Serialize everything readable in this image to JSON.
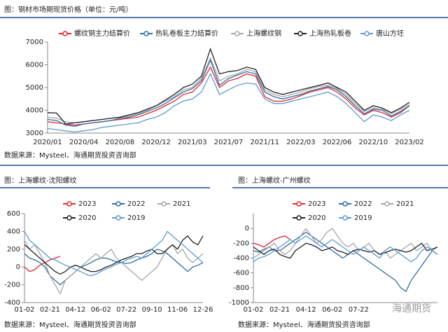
{
  "chart_data": [
    {
      "type": "line",
      "title": "图：钢材市场期现货价格（单位：元/吨）",
      "source": "数据来源：Mysteel、海通期货投资咨询部",
      "categories": [
        "2020/01",
        null,
        null,
        null,
        "2020/04",
        null,
        null,
        null,
        "2020/08",
        null,
        null,
        null,
        "2020/12",
        null,
        null,
        null,
        "2021/03",
        null,
        null,
        null,
        "2021/07",
        null,
        null,
        null,
        "2021/11",
        null,
        null,
        null,
        "2022/03",
        null,
        null,
        null,
        "2022/06",
        null,
        null,
        null,
        "2022/10",
        null,
        null,
        null,
        "2023/02"
      ],
      "ylim": [
        3000,
        7000
      ],
      "yticks": [
        3000,
        4000,
        5000,
        6000,
        7000
      ],
      "series": [
        {
          "name": "螺纹钢主力结算价",
          "color": "#e3262d",
          "values": [
            3500,
            3450,
            3400,
            3350,
            3400,
            3450,
            3500,
            3550,
            3600,
            3650,
            3700,
            3850,
            4000,
            4200,
            4400,
            4700,
            4800,
            5200,
            5900,
            5000,
            5300,
            5400,
            5600,
            5500,
            4600,
            4400,
            4400,
            4500,
            4650,
            4800,
            4900,
            5000,
            4800,
            4500,
            4100,
            3800,
            4000,
            3900,
            3700,
            3900,
            4200
          ]
        },
        {
          "name": "热轧卷板主力结算价",
          "color": "#2e6da4",
          "values": [
            3600,
            3550,
            3350,
            3300,
            3400,
            3450,
            3500,
            3550,
            3650,
            3700,
            3800,
            3950,
            4100,
            4300,
            4550,
            4800,
            4950,
            5300,
            6200,
            5100,
            5400,
            5550,
            5700,
            5600,
            4800,
            4600,
            4500,
            4600,
            4700,
            4850,
            4950,
            5050,
            4900,
            4600,
            4200,
            3850,
            4050,
            4000,
            3750,
            3950,
            4200
          ]
        },
        {
          "name": "上海螺纹钢",
          "color": "#a6a6a6",
          "values": [
            3700,
            3650,
            3500,
            3450,
            3500,
            3550,
            3600,
            3650,
            3700,
            3750,
            3850,
            4000,
            4200,
            4400,
            4600,
            4900,
            5000,
            5400,
            6300,
            5300,
            5500,
            5600,
            5800,
            5700,
            4900,
            4700,
            4600,
            4700,
            4800,
            4950,
            5050,
            5100,
            4950,
            4700,
            4300,
            3950,
            4100,
            4050,
            3850,
            4050,
            4250
          ]
        },
        {
          "name": "上海热轧板卷",
          "color": "#222222",
          "values": [
            3900,
            3880,
            3400,
            3450,
            3500,
            3550,
            3600,
            3650,
            3700,
            3800,
            3900,
            4050,
            4200,
            4450,
            4700,
            5000,
            5150,
            5500,
            6700,
            5600,
            5700,
            5750,
            5900,
            5800,
            5000,
            4800,
            4700,
            4800,
            4900,
            5000,
            5100,
            5200,
            5000,
            4800,
            4400,
            4000,
            4200,
            4100,
            3900,
            4100,
            4350
          ]
        },
        {
          "name": "唐山方坯",
          "color": "#5b9bd5",
          "values": [
            3200,
            3150,
            3100,
            3050,
            3100,
            3150,
            3250,
            3300,
            3350,
            3400,
            3450,
            3600,
            3700,
            3900,
            4200,
            4400,
            4500,
            4800,
            5600,
            4700,
            4900,
            5100,
            5200,
            5150,
            4500,
            4300,
            4300,
            4400,
            4500,
            4600,
            4700,
            4800,
            4600,
            4300,
            3900,
            3500,
            3800,
            3700,
            3550,
            3800,
            4000
          ]
        }
      ]
    },
    {
      "type": "line",
      "title": "图：上海螺纹-沈阳螺纹",
      "source": "数据来源：Mysteel、海通期货投资咨询部",
      "categories": [
        "01-02",
        null,
        null,
        null,
        null,
        "02-21",
        null,
        null,
        null,
        null,
        "04-12",
        null,
        null,
        null,
        null,
        "06-02",
        null,
        null,
        null,
        null,
        "07-22",
        null,
        null,
        null,
        null,
        "09-10",
        null,
        null,
        null,
        null,
        "11-06",
        null,
        null,
        null,
        null,
        "12-26"
      ],
      "ylim": [
        -400,
        600
      ],
      "yticks": [
        -400,
        -200,
        0,
        200,
        400,
        600
      ],
      "series": [
        {
          "name": "2023",
          "color": "#e3262d",
          "values": [
            0,
            -50,
            -30,
            20,
            50,
            80,
            100,
            120,
            null,
            null,
            null,
            null,
            null,
            null,
            null,
            null,
            null,
            null,
            null,
            null,
            null,
            null,
            null,
            null,
            null,
            null,
            null,
            null,
            null,
            null,
            null,
            null,
            null,
            null,
            null,
            null
          ]
        },
        {
          "name": "2022",
          "color": "#2e6da4",
          "values": [
            150,
            100,
            80,
            50,
            0,
            -100,
            -150,
            -200,
            -150,
            -100,
            -50,
            0,
            20,
            50,
            80,
            100,
            100,
            80,
            60,
            50,
            40,
            50,
            80,
            100,
            120,
            150,
            200,
            180,
            150,
            100,
            50,
            0,
            -50,
            0,
            20,
            50
          ]
        },
        {
          "name": "2021",
          "color": "#a6a6a6",
          "values": [
            300,
            200,
            250,
            150,
            50,
            -100,
            -200,
            -300,
            -150,
            -100,
            -50,
            0,
            50,
            100,
            150,
            100,
            150,
            200,
            100,
            50,
            0,
            -50,
            -100,
            -150,
            -100,
            -50,
            0,
            100,
            200,
            250,
            150,
            200,
            100,
            50,
            100,
            150
          ]
        },
        {
          "name": "2020",
          "color": "#222222",
          "values": [
            250,
            200,
            150,
            100,
            50,
            0,
            -50,
            -80,
            -50,
            0,
            20,
            0,
            -30,
            -50,
            -50,
            -30,
            0,
            20,
            50,
            80,
            100,
            120,
            150,
            150,
            180,
            200,
            150,
            150,
            200,
            250,
            200,
            300,
            350,
            280,
            250,
            350
          ]
        },
        {
          "name": "2019",
          "color": "#5b9bd5",
          "values": [
            400,
            300,
            250,
            200,
            150,
            100,
            80,
            50,
            20,
            0,
            -30,
            -50,
            -80,
            -100,
            -80,
            -50,
            -20,
            0,
            30,
            50,
            80,
            100,
            120,
            100,
            150,
            200,
            250,
            300,
            400,
            350,
            300,
            250,
            200,
            150,
            100,
            50
          ]
        }
      ]
    },
    {
      "type": "line",
      "title": "图：上海螺纹-广州螺纹",
      "source": "数据来源：Mysteel、海通期货投资咨询部",
      "watermark": "海通期货",
      "categories": [
        "01-02",
        null,
        null,
        null,
        null,
        "02-21",
        null,
        null,
        null,
        null,
        "04-12",
        null,
        null,
        null,
        null,
        "06-02",
        null,
        null,
        null,
        null,
        "07-22",
        null,
        null,
        null,
        null,
        null,
        null,
        null,
        null,
        null,
        null,
        null,
        null,
        null,
        null,
        null
      ],
      "ylim": [
        -1000,
        200
      ],
      "yticks": [
        -1000,
        -800,
        -600,
        -400,
        -200,
        0
      ],
      "series": [
        {
          "name": "2023",
          "color": "#e3262d",
          "values": [
            -200,
            -220,
            -250,
            -200,
            -150,
            -120,
            -100,
            -150,
            null,
            null,
            null,
            null,
            null,
            null,
            null,
            null,
            null,
            null,
            null,
            null,
            null,
            null,
            null,
            null,
            null,
            null,
            null,
            null,
            null,
            null,
            null,
            null,
            null,
            null,
            null,
            null
          ]
        },
        {
          "name": "2022",
          "color": "#2e6da4",
          "values": [
            -300,
            -320,
            -280,
            -250,
            -300,
            -300,
            -250,
            -200,
            -150,
            -100,
            -50,
            -100,
            -150,
            -200,
            -250,
            -300,
            -350,
            -400,
            -350,
            -300,
            -350,
            -400,
            -450,
            -500,
            -550,
            -600,
            -650,
            -700,
            -800,
            -850,
            -700,
            -600,
            -500,
            -400,
            -300,
            -350
          ]
        },
        {
          "name": "2021",
          "color": "#a6a6a6",
          "values": [
            -400,
            -350,
            -300,
            -250,
            -200,
            -300,
            -350,
            -300,
            -200,
            -100,
            0,
            -100,
            -200,
            -150,
            -50,
            0,
            -100,
            -200,
            -250,
            -200,
            -300,
            -250,
            -200,
            -300,
            -350,
            -300,
            -400,
            -350,
            -300,
            -250,
            -200,
            -300,
            -250,
            -200,
            -300,
            -250
          ]
        },
        {
          "name": "2020",
          "color": "#222222",
          "values": [
            -250,
            -300,
            -350,
            -300,
            -280,
            -350,
            -380,
            -400,
            -300,
            -250,
            -200,
            -220,
            -250,
            -300,
            -280,
            -250,
            -300,
            -320,
            -350,
            -300,
            -280,
            -300,
            -320,
            -300,
            -350,
            -330,
            -300,
            -280,
            -300,
            -320,
            -300,
            -250,
            -200,
            -300,
            -280,
            -250
          ]
        },
        {
          "name": "2019",
          "color": "#5b9bd5",
          "values": [
            -450,
            -400,
            -380,
            -350,
            -300,
            -250,
            -200,
            -150,
            -200,
            -150,
            -100,
            -150,
            -200,
            -250,
            -200,
            -150,
            -200,
            -250,
            -300,
            -350,
            -300,
            -250,
            -300,
            -350,
            -400,
            -300,
            -250,
            -300,
            -350,
            -400,
            -450,
            -400,
            -300,
            -250,
            -300,
            -350
          ]
        }
      ]
    }
  ]
}
